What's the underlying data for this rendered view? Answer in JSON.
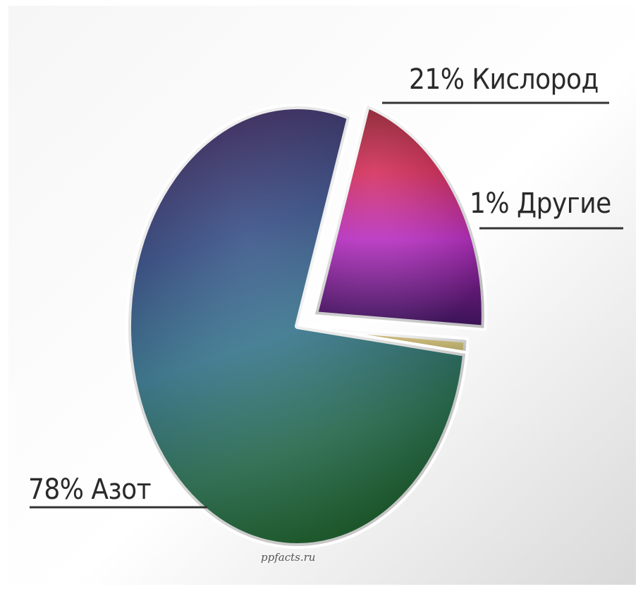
{
  "chart_data": {
    "type": "pie",
    "exploded": "Кислород",
    "slices": [
      {
        "label": "Азот",
        "value": 78,
        "text": "78% Азот",
        "color": "#2e6a8a"
      },
      {
        "label": "Кислород",
        "value": 21,
        "text": "21% Кислород",
        "color": "#b0208c"
      },
      {
        "label": "Другие",
        "value": 1,
        "text": "1% Другие",
        "color": "#d8c86a"
      }
    ]
  },
  "watermark": "ppfacts.ru"
}
